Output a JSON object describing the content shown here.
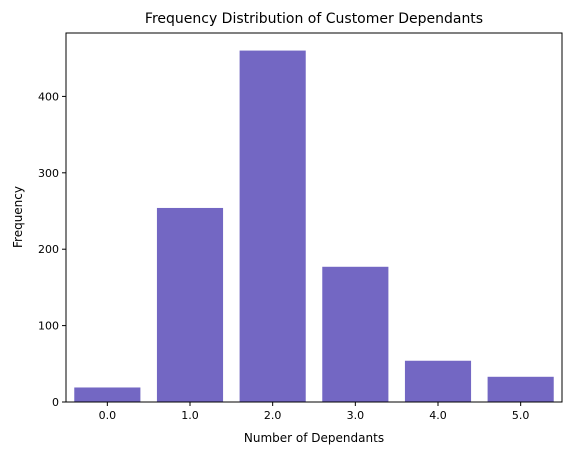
{
  "chart_data": {
    "type": "bar",
    "title": "Frequency Distribution of Customer Dependants",
    "xlabel": "Number of Dependants",
    "ylabel": "Frequency",
    "categories": [
      "0.0",
      "1.0",
      "2.0",
      "3.0",
      "4.0",
      "5.0"
    ],
    "values": [
      19,
      254,
      460,
      177,
      54,
      33
    ],
    "ylim": [
      0,
      483
    ],
    "yticks": [
      0,
      100,
      200,
      300,
      400
    ],
    "grid": false,
    "bar_color": "#7367c3"
  }
}
